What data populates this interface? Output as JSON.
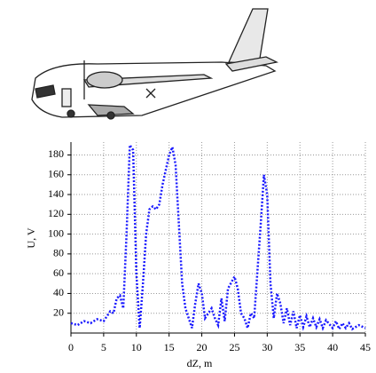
{
  "chart_data": {
    "type": "line",
    "xlabel": "dZ, m",
    "ylabel": "U, V",
    "x": [
      0,
      1,
      2,
      3,
      4,
      5,
      6,
      6.5,
      7,
      7.5,
      8,
      8.5,
      9,
      9.5,
      10,
      10.5,
      11,
      11.5,
      12,
      12.5,
      13,
      13.5,
      14,
      15,
      15.5,
      16,
      16.5,
      17,
      17.5,
      18,
      18.5,
      19,
      19.5,
      20,
      20.5,
      21,
      21.5,
      22,
      22.5,
      23,
      23.5,
      24,
      25,
      25.5,
      26,
      26.5,
      27,
      27.5,
      28,
      29,
      29.5,
      30,
      30.5,
      31,
      31.5,
      32,
      32.5,
      33,
      33.5,
      34,
      34.5,
      35,
      35.5,
      36,
      36.5,
      37,
      37.5,
      38,
      38.5,
      39,
      40,
      40.5,
      41,
      41.5,
      42,
      42.5,
      43,
      44,
      45
    ],
    "values": [
      10,
      8,
      12,
      10,
      14,
      12,
      22,
      20,
      35,
      38,
      25,
      100,
      190,
      185,
      60,
      5,
      50,
      100,
      125,
      128,
      125,
      130,
      150,
      180,
      188,
      170,
      110,
      50,
      25,
      15,
      5,
      30,
      50,
      40,
      15,
      20,
      25,
      15,
      8,
      35,
      12,
      45,
      57,
      45,
      20,
      15,
      5,
      20,
      15,
      110,
      160,
      140,
      50,
      15,
      40,
      30,
      10,
      25,
      8,
      22,
      5,
      18,
      6,
      17,
      6,
      15,
      6,
      14,
      5,
      13,
      5,
      12,
      4,
      10,
      5,
      10,
      4,
      8,
      5
    ],
    "color": "#1a1aff",
    "line_style": "dotted",
    "xlim": [
      0,
      45
    ],
    "xticks": [
      0,
      5,
      10,
      15,
      20,
      25,
      30,
      35,
      40,
      45
    ],
    "ylim": [
      0,
      193
    ],
    "yticks": [
      20,
      40,
      60,
      80,
      100,
      120,
      140,
      160,
      180
    ],
    "grid": true
  }
}
